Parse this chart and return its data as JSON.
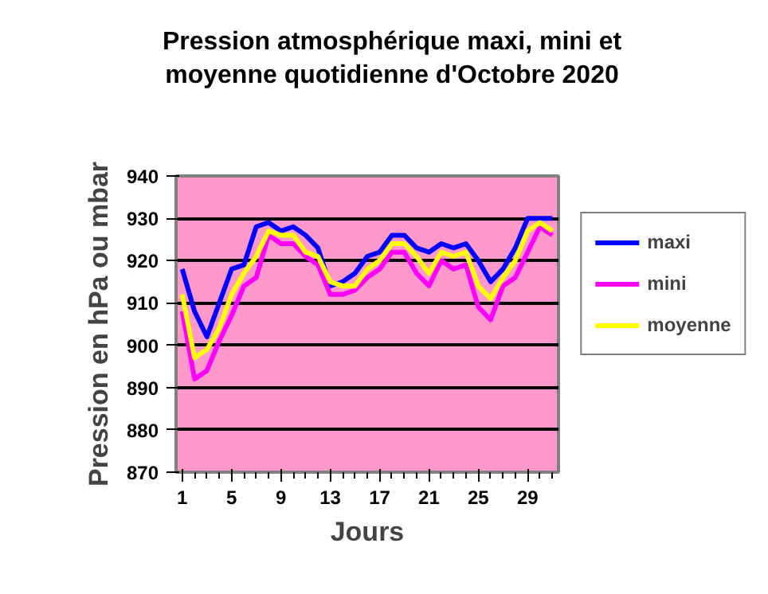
{
  "chart_data": {
    "type": "line",
    "title": "Pression atmosphérique maxi, mini et moyenne quotidienne d'Octobre 2020",
    "xlabel": "Jours",
    "ylabel": "Pression en hPa ou mbar",
    "x": [
      1,
      2,
      3,
      4,
      5,
      6,
      7,
      8,
      9,
      10,
      11,
      12,
      13,
      14,
      15,
      16,
      17,
      18,
      19,
      20,
      21,
      22,
      23,
      24,
      25,
      26,
      27,
      28,
      29,
      30,
      31
    ],
    "xlim": [
      0.5,
      31.5
    ],
    "xticks": [
      1,
      5,
      9,
      13,
      17,
      21,
      25,
      29
    ],
    "ylim": [
      870,
      940
    ],
    "yticks": [
      870,
      880,
      890,
      900,
      910,
      920,
      930,
      940
    ],
    "grid": "y",
    "legend": "right",
    "marker": "none",
    "line_style": "solid",
    "series": [
      {
        "name": "maxi",
        "color": "#0000ff",
        "values": [
          918,
          908,
          902,
          910,
          918,
          919,
          928,
          929,
          927,
          928,
          926,
          923,
          914,
          915,
          917,
          921,
          922,
          926,
          926,
          923,
          922,
          924,
          923,
          924,
          920,
          915,
          918,
          923,
          930,
          930,
          930
        ]
      },
      {
        "name": "mini",
        "color": "#ff00ff",
        "values": [
          908,
          892,
          894,
          901,
          907,
          914,
          916,
          926,
          924,
          924,
          921,
          919,
          912,
          912,
          913,
          916,
          918,
          922,
          922,
          917,
          914,
          920,
          918,
          919,
          909,
          906,
          914,
          916,
          922,
          928,
          926
        ]
      },
      {
        "name": "moyenne",
        "color": "#ffff00",
        "values": [
          912,
          897,
          899,
          904,
          912,
          917,
          921,
          927,
          926,
          926,
          922,
          921,
          915,
          914,
          914,
          918,
          920,
          924,
          924,
          921,
          917,
          922,
          921,
          922,
          914,
          911,
          916,
          920,
          927,
          929,
          927
        ]
      }
    ]
  }
}
